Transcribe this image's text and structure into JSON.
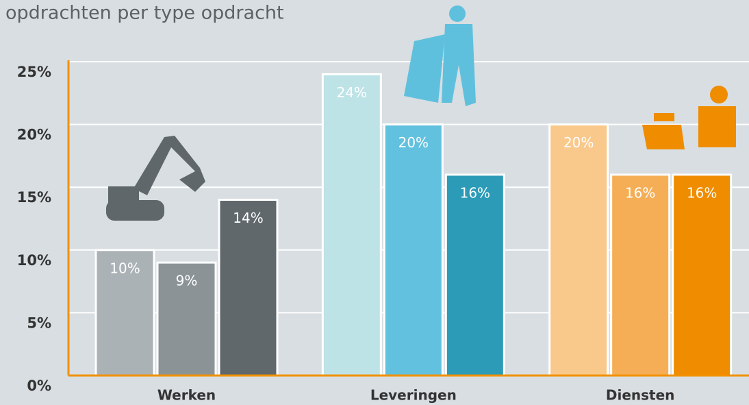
{
  "chart_data": {
    "type": "bar",
    "title": "opdrachten per type opdracht",
    "categories": [
      "Werken",
      "Leveringen",
      "Diensten"
    ],
    "series": [
      {
        "colors": [
          "#aab2b6",
          "#bde3e7",
          "#f9c98c"
        ],
        "values": [
          10,
          24,
          20
        ],
        "value_labels": [
          "10%",
          "24%",
          "20%"
        ]
      },
      {
        "colors": [
          "#8b9397",
          "#62c1df",
          "#f5ae55"
        ],
        "values": [
          9,
          20,
          16
        ],
        "value_labels": [
          "9%",
          "20%",
          "16%"
        ]
      },
      {
        "colors": [
          "#60686c",
          "#2b9bb7",
          "#ef8c00"
        ],
        "values": [
          14,
          16,
          16
        ],
        "value_labels": [
          "14%",
          "16%",
          "16%"
        ]
      }
    ],
    "ylim": [
      0,
      25
    ],
    "yticks": [
      {
        "value": 0,
        "label": "0%"
      },
      {
        "value": 5,
        "label": "5%"
      },
      {
        "value": 10,
        "label": "10%"
      },
      {
        "value": 15,
        "label": "15%"
      },
      {
        "value": 20,
        "label": "20%"
      },
      {
        "value": 25,
        "label": "25%"
      }
    ],
    "grid": true,
    "axis_color": "#f29100"
  }
}
